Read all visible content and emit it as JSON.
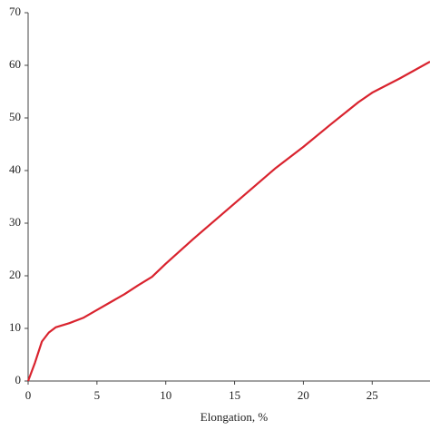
{
  "chart_data": {
    "type": "line",
    "x_label": "Elongation, %",
    "xlim": [
      0,
      29.2
    ],
    "xticks": [
      0,
      5,
      10,
      15,
      20,
      25
    ],
    "ylim": [
      0,
      70
    ],
    "yticks": [
      0,
      10,
      20,
      30,
      40,
      50,
      60,
      70
    ],
    "grid": false,
    "series": [
      {
        "color": "#d9232e",
        "x": [
          0,
          0.5,
          1,
          1.5,
          2,
          3,
          4,
          5,
          6,
          7,
          8,
          9,
          10,
          12,
          14,
          16,
          18,
          20,
          22,
          24,
          25,
          27,
          29.2
        ],
        "values": [
          0,
          3.5,
          7.5,
          9.2,
          10.2,
          11,
          12,
          13.5,
          15,
          16.5,
          18.2,
          19.8,
          22.3,
          27,
          31.5,
          36,
          40.5,
          44.5,
          48.8,
          53,
          54.8,
          57.5,
          60.7
        ]
      }
    ]
  }
}
